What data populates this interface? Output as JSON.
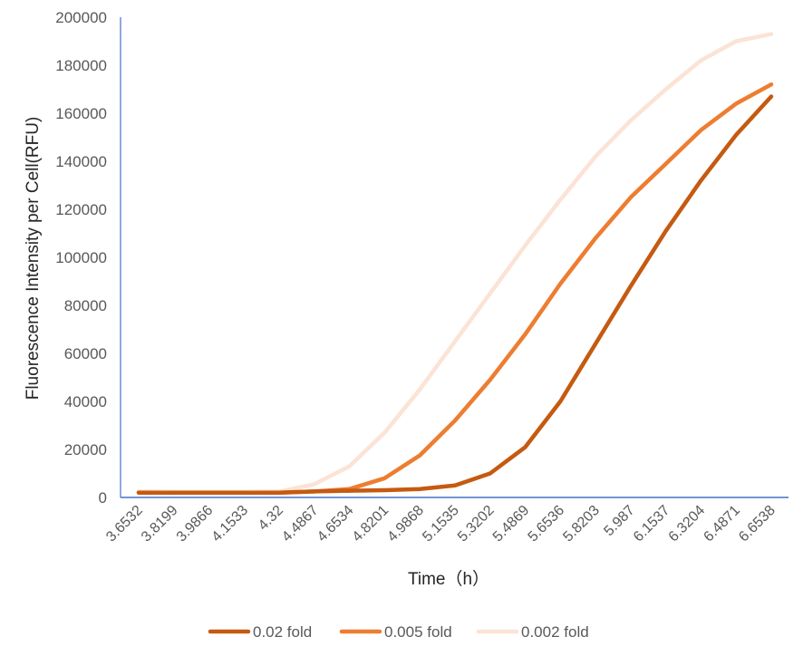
{
  "chart_data": {
    "type": "line",
    "title": "",
    "xlabel": "Time（h）",
    "ylabel": "Fluorescence Intensity per Cell(RFU)",
    "ylim": [
      0,
      200000
    ],
    "yticks": [
      "0",
      "20000",
      "40000",
      "60000",
      "80000",
      "100000",
      "120000",
      "140000",
      "160000",
      "180000",
      "200000"
    ],
    "categories": [
      "3.6532",
      "3.8199",
      "3.9866",
      "4.1533",
      "4.32",
      "4.4867",
      "4.6534",
      "4.8201",
      "4.9868",
      "5.1535",
      "5.3202",
      "5.4869",
      "5.6536",
      "5.8203",
      "5.987",
      "6.1537",
      "6.3204",
      "6.4871",
      "6.6538"
    ],
    "grid": false,
    "legend_position": "bottom",
    "series": [
      {
        "name": "0.02 fold",
        "color": "#c55a11",
        "values": [
          2000,
          2000,
          2000,
          2000,
          2000,
          2500,
          2800,
          3000,
          3500,
          5000,
          10000,
          21000,
          40000,
          64000,
          88000,
          111000,
          132000,
          151000,
          167000
        ]
      },
      {
        "name": "0.005 fold",
        "color": "#ed7d31",
        "values": [
          2000,
          2000,
          2000,
          2000,
          2000,
          2500,
          3500,
          8000,
          17500,
          32000,
          49000,
          68000,
          89000,
          108000,
          125000,
          139000,
          153000,
          164000,
          172000
        ]
      },
      {
        "name": "0.002 fold",
        "color": "#fbe3d5",
        "values": [
          2500,
          2300,
          2300,
          2300,
          2500,
          5500,
          13000,
          27000,
          45000,
          65000,
          85000,
          105000,
          124000,
          142000,
          157000,
          170000,
          182000,
          190000,
          193000
        ]
      }
    ]
  }
}
